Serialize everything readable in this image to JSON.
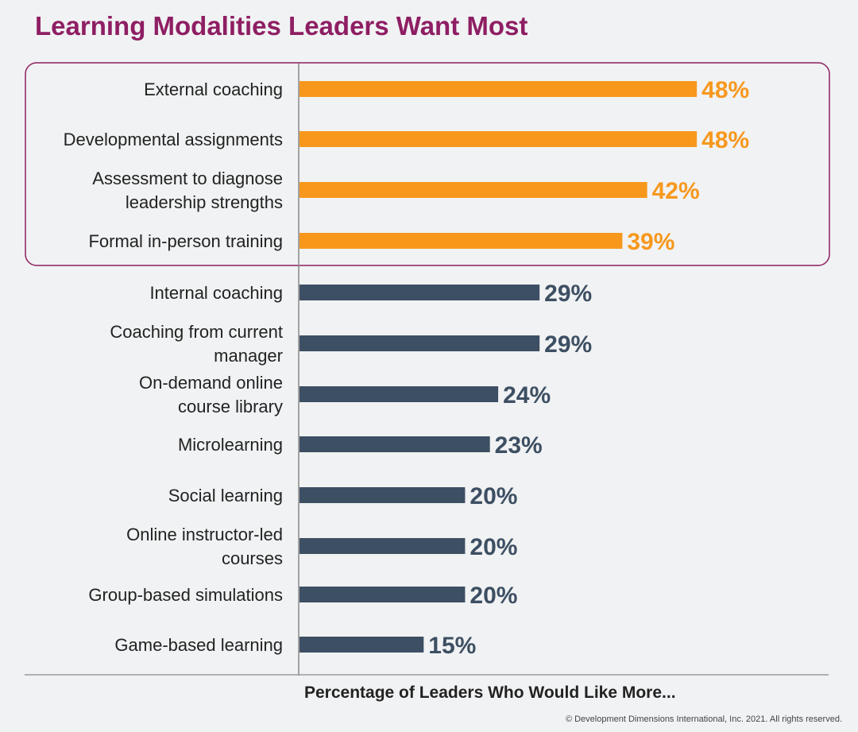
{
  "title": "Learning Modalities Leaders Want Most",
  "copyright": "© Development Dimensions International, Inc. 2021. All rights reserved.",
  "colors": {
    "title": "#8e1e63",
    "highlight_bar": "#f7981d",
    "regular_bar": "#3d4f63",
    "highlight_box": "#8e1e63",
    "axis": "#888888"
  },
  "chart_data": {
    "type": "bar",
    "orientation": "horizontal",
    "title": "Learning Modalities Leaders Want Most",
    "xlabel": "Percentage of Leaders Who Would Like More...",
    "ylabel": "",
    "xlim": [
      0,
      55
    ],
    "grid": false,
    "categories": [
      [
        "External coaching"
      ],
      [
        "Developmental assignments"
      ],
      [
        "Assessment to diagnose",
        "leadership strengths"
      ],
      [
        "Formal in-person training"
      ],
      [
        "Internal coaching"
      ],
      [
        "Coaching from current",
        "manager"
      ],
      [
        "On-demand online",
        "course library"
      ],
      [
        "Microlearning"
      ],
      [
        "Social learning"
      ],
      [
        "Online instructor-led",
        "courses"
      ],
      [
        "Group-based simulations"
      ],
      [
        "Game-based learning"
      ]
    ],
    "values": [
      48,
      48,
      42,
      39,
      29,
      29,
      24,
      23,
      20,
      20,
      20,
      15
    ],
    "value_labels": [
      "48%",
      "48%",
      "42%",
      "39%",
      "29%",
      "29%",
      "24%",
      "23%",
      "20%",
      "20%",
      "20%",
      "15%"
    ],
    "highlighted": [
      true,
      true,
      true,
      true,
      false,
      false,
      false,
      false,
      false,
      false,
      false,
      false
    ]
  }
}
